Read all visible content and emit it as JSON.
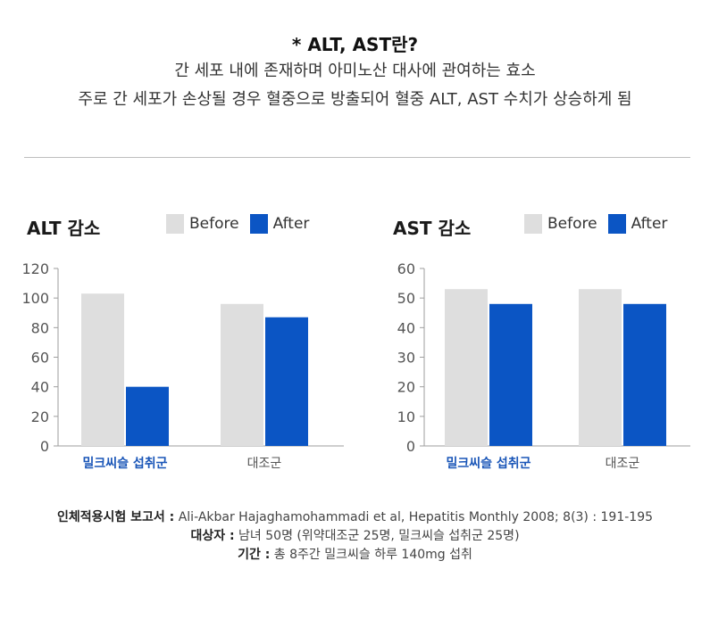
{
  "header": {
    "title": "* ALT, AST란?",
    "line1": "간 세포 내에 존재하며 아미노산 대사에 관여하는 효소",
    "line2": "주로 간 세포가 손상될 경우 혈중으로 방출되어 혈중 ALT, AST 수치가 상승하게 됨"
  },
  "colors": {
    "before": "#dedede",
    "after": "#0b55c4",
    "highlight_category": "#1a56b8",
    "axis": "#9e9e9e"
  },
  "chart_data": [
    {
      "type": "bar",
      "title": "ALT 감소",
      "categories": [
        "밀크씨슬 섭취군",
        "대조군"
      ],
      "highlight_category": "밀크씨슬 섭취군",
      "series": [
        {
          "name": "Before",
          "values": [
            103,
            96
          ]
        },
        {
          "name": "After",
          "values": [
            40,
            87
          ]
        }
      ],
      "ylim": [
        0,
        120
      ],
      "yticks": [
        0,
        20,
        40,
        60,
        80,
        100,
        120
      ],
      "grid": false,
      "legend": "top"
    },
    {
      "type": "bar",
      "title": "AST 감소",
      "categories": [
        "밀크씨슬 섭취군",
        "대조군"
      ],
      "highlight_category": "밀크씨슬 섭취군",
      "series": [
        {
          "name": "Before",
          "values": [
            53,
            53
          ]
        },
        {
          "name": "After",
          "values": [
            48,
            48
          ]
        }
      ],
      "ylim": [
        0,
        60
      ],
      "yticks": [
        0,
        10,
        20,
        30,
        40,
        50,
        60
      ],
      "grid": false,
      "legend": "top"
    }
  ],
  "footer": {
    "source_label": "인체적용시험 보고서 :",
    "source_text": "Ali-Akbar Hajaghamohammadi et al, Hepatitis Monthly 2008; 8(3) : 191-195",
    "subjects_label": "대상자 :",
    "subjects_text": "남녀 50명 (위약대조군 25명, 밀크씨슬 섭취군 25명)",
    "period_label": "기간 :",
    "period_text": "총 8주간 밀크씨슬 하루 140mg 섭취"
  }
}
